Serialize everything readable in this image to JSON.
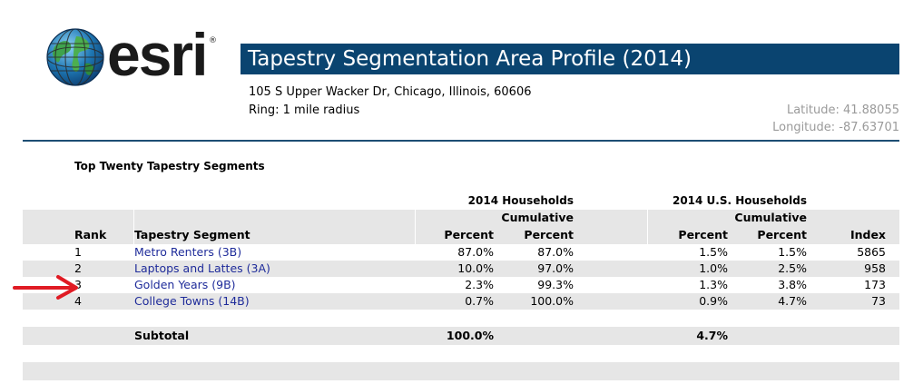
{
  "logo": {
    "text": "esri",
    "reg": "®"
  },
  "report": {
    "title": "Tapestry Segmentation Area Profile (2014)",
    "address": "105 S Upper Wacker Dr, Chicago, Illinois, 60606",
    "ring": "Ring: 1 mile radius",
    "latitude": "Latitude: 41.88055",
    "longitude": "Longitude: -87.63701"
  },
  "section": {
    "title": "Top Twenty Tapestry Segments"
  },
  "table": {
    "group1": "2014 Households",
    "group2": "2014 U.S. Households",
    "cumulative1": "Cumulative",
    "cumulative2": "Cumulative",
    "headers": {
      "rank": "Rank",
      "segment": "Tapestry Segment",
      "percent1": "Percent",
      "cum_percent1": "Percent",
      "percent2": "Percent",
      "cum_percent2": "Percent",
      "index": "Index"
    },
    "rows": [
      {
        "rank": "1",
        "segment": "Metro Renters (3B)",
        "p1": "87.0%",
        "c1": "87.0%",
        "p2": "1.5%",
        "c2": "1.5%",
        "index": "5865"
      },
      {
        "rank": "2",
        "segment": "Laptops and Lattes (3A)",
        "p1": "10.0%",
        "c1": "97.0%",
        "p2": "1.0%",
        "c2": "2.5%",
        "index": "958"
      },
      {
        "rank": "3",
        "segment": "Golden Years (9B)",
        "p1": "2.3%",
        "c1": "99.3%",
        "p2": "1.3%",
        "c2": "3.8%",
        "index": "173"
      },
      {
        "rank": "4",
        "segment": "College Towns (14B)",
        "p1": "0.7%",
        "c1": "100.0%",
        "p2": "0.9%",
        "c2": "4.7%",
        "index": "73"
      }
    ],
    "subtotal": {
      "label": "Subtotal",
      "p1": "100.0%",
      "p2": "4.7%"
    }
  },
  "annotation": {
    "arrow_color": "#e01b24",
    "arrow_icon": "arrow-right-icon"
  },
  "colors": {
    "title_bar": "#0a4470",
    "link": "#1f2c9a",
    "band": "#e6e6e6",
    "coords": "#9a9a9a"
  }
}
